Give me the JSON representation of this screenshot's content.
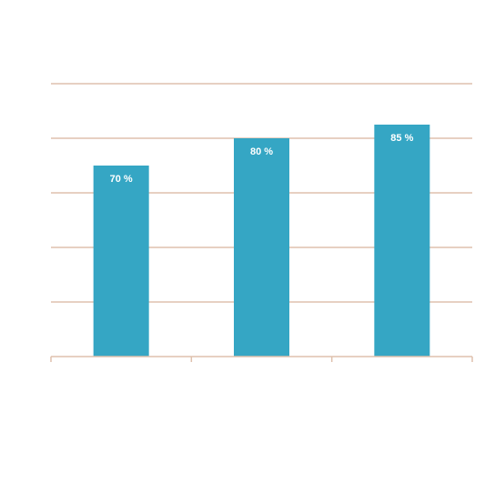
{
  "chart_data": {
    "type": "bar",
    "categories": [
      "",
      "",
      ""
    ],
    "values": [
      70,
      80,
      85
    ],
    "data_labels": [
      "70 %",
      "80 %",
      "85 %"
    ],
    "ylim": [
      0,
      100
    ],
    "yticks": [
      0,
      20,
      40,
      60,
      80,
      100
    ],
    "grid": true,
    "bar_color": "#35a6c4",
    "grid_color": "#dfc1ad"
  }
}
